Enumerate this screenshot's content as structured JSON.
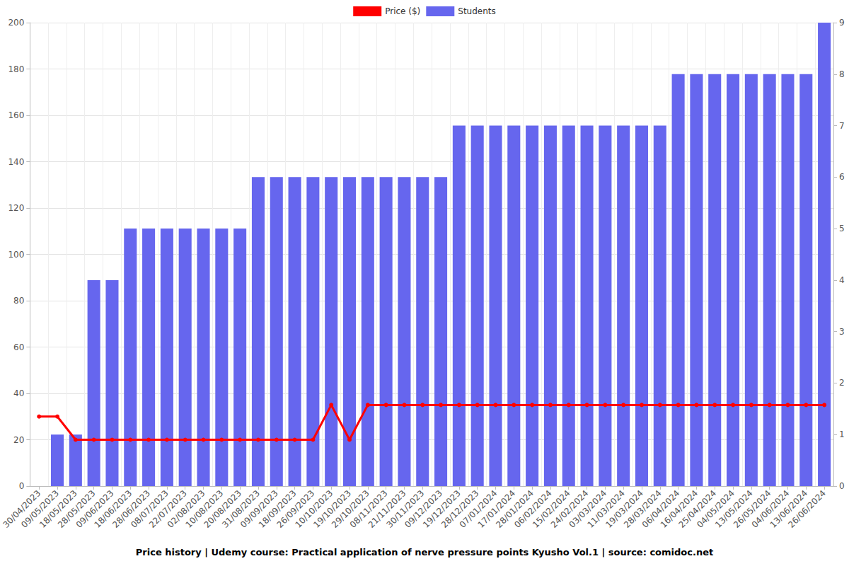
{
  "chart_data": {
    "type": "bar",
    "title": "Price history | Udemy course: Practical application of nerve pressure points Kyusho Vol.1 | source: comidoc.net",
    "categories": [
      "30/04/2023",
      "09/05/2023",
      "18/05/2023",
      "28/05/2023",
      "09/06/2023",
      "18/06/2023",
      "28/06/2023",
      "08/07/2023",
      "22/07/2023",
      "02/08/2023",
      "10/08/2023",
      "20/08/2023",
      "31/08/2023",
      "09/09/2023",
      "18/09/2023",
      "26/09/2023",
      "10/10/2023",
      "19/10/2023",
      "29/10/2023",
      "08/11/2023",
      "21/11/2023",
      "30/11/2023",
      "09/12/2023",
      "19/12/2023",
      "28/12/2023",
      "07/01/2024",
      "17/01/2024",
      "28/01/2024",
      "06/02/2024",
      "15/02/2024",
      "24/02/2024",
      "03/03/2024",
      "11/03/2024",
      "19/03/2024",
      "28/03/2024",
      "06/04/2024",
      "16/04/2024",
      "25/04/2024",
      "04/05/2024",
      "13/05/2024",
      "26/05/2024",
      "04/06/2024",
      "13/06/2024",
      "26/06/2024"
    ],
    "series": [
      {
        "name": "Price ($)",
        "type": "line",
        "color": "#ff0000",
        "marker": "circle",
        "values": [
          30,
          30,
          20,
          20,
          20,
          20,
          20,
          20,
          20,
          20,
          20,
          20,
          20,
          20,
          20,
          20,
          35,
          20,
          35,
          35,
          35,
          35,
          35,
          35,
          35,
          35,
          35,
          35,
          35,
          35,
          35,
          35,
          35,
          35,
          35,
          35,
          35,
          35,
          35,
          35,
          35,
          35,
          35,
          35
        ]
      },
      {
        "name": "Students",
        "type": "bar",
        "color": "#6666ee",
        "axis": "y2",
        "values": [
          0,
          1,
          1,
          4,
          4,
          5,
          5,
          5,
          5,
          5,
          5,
          5,
          6,
          6,
          6,
          6,
          6,
          6,
          6,
          6,
          6,
          6,
          6,
          7,
          7,
          7,
          7,
          7,
          7,
          7,
          7,
          7,
          7,
          7,
          7,
          8,
          8,
          8,
          8,
          8,
          8,
          8,
          8,
          9
        ]
      }
    ],
    "ylim": [
      0,
      200
    ],
    "yticks": [
      0,
      20,
      40,
      60,
      80,
      100,
      120,
      140,
      160,
      180,
      200
    ],
    "y2lim": [
      0,
      9
    ],
    "y2ticks": [
      0,
      1,
      2,
      3,
      4,
      5,
      6,
      7,
      8,
      9
    ],
    "grid": true,
    "legend": "top"
  }
}
